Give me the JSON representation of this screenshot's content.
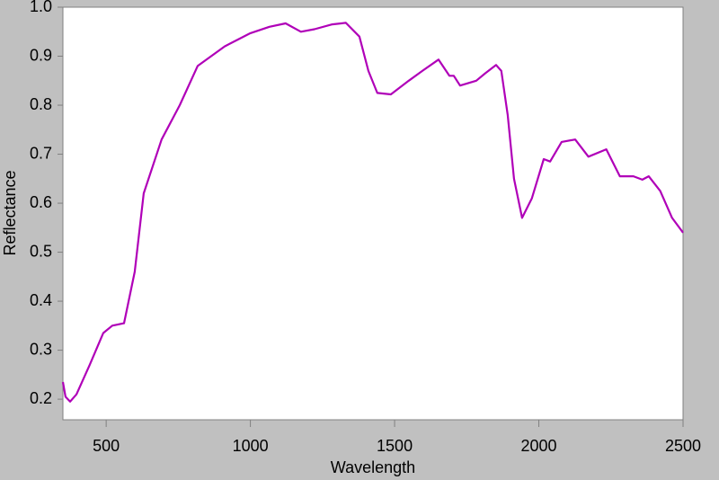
{
  "chart_data": {
    "type": "line",
    "x_label": "Wavelength",
    "y_label": "Reflectance",
    "x": [
      350,
      359,
      375,
      397,
      443,
      490,
      521,
      562,
      599,
      630,
      692,
      755,
      817,
      911,
      1000,
      1066,
      1122,
      1175,
      1222,
      1284,
      1331,
      1378,
      1409,
      1440,
      1487,
      1549,
      1596,
      1652,
      1690,
      1705,
      1727,
      1783,
      1814,
      1852,
      1870,
      1892,
      1914,
      1942,
      1976,
      2017,
      2039,
      2079,
      2126,
      2172,
      2234,
      2281,
      2328,
      2359,
      2381,
      2421,
      2462,
      2500
    ],
    "series": [
      {
        "color": "#b000b8",
        "values": [
          0.235,
          0.205,
          0.195,
          0.21,
          0.27,
          0.335,
          0.35,
          0.355,
          0.46,
          0.62,
          0.73,
          0.8,
          0.88,
          0.92,
          0.947,
          0.96,
          0.967,
          0.95,
          0.955,
          0.965,
          0.968,
          0.94,
          0.87,
          0.825,
          0.822,
          0.85,
          0.87,
          0.893,
          0.86,
          0.86,
          0.84,
          0.85,
          0.865,
          0.882,
          0.87,
          0.78,
          0.65,
          0.57,
          0.61,
          0.69,
          0.685,
          0.725,
          0.73,
          0.695,
          0.71,
          0.655,
          0.655,
          0.648,
          0.655,
          0.625,
          0.57,
          0.54
        ]
      }
    ],
    "xlim": [
      350,
      2500
    ],
    "ylim": [
      0.158,
      1
    ],
    "xticks": [
      500,
      1000,
      1500,
      2000,
      2500
    ],
    "yticks": [
      {
        "value": 1,
        "label": "1.0"
      },
      0.9,
      0.8,
      0.7,
      0.6,
      0.5,
      0.4,
      0.3,
      0.2
    ]
  }
}
